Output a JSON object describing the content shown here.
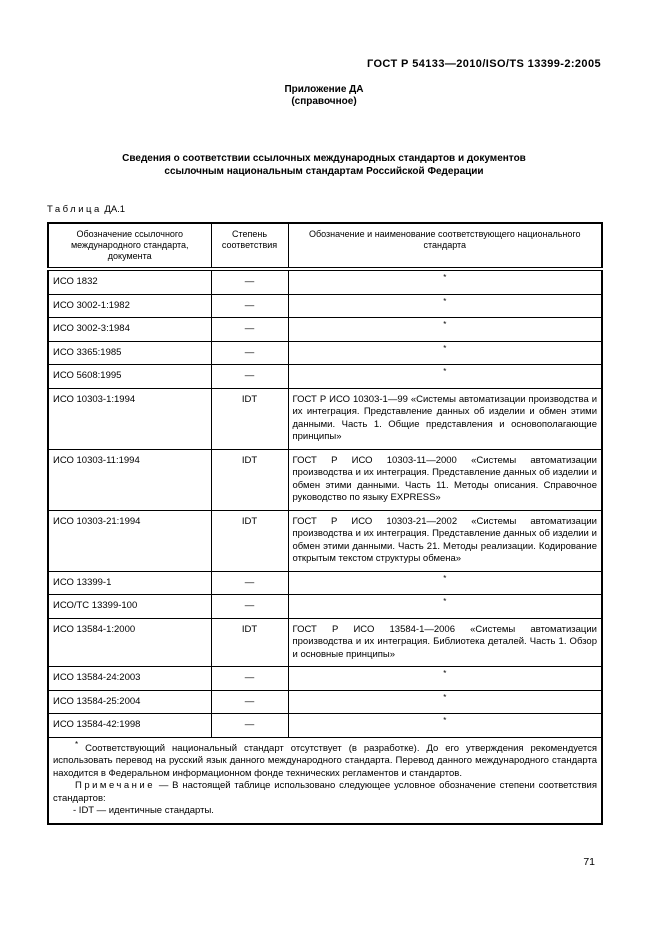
{
  "colors": {
    "ink": "#000000",
    "paper": "#ffffff"
  },
  "page": {
    "header": "ГОСТ Р 54133—2010/ISO/TS 13399-2:2005",
    "annex_label": "Приложение ДА",
    "annex_type": "(справочное)",
    "title_line1": "Сведения о соответствии ссылочных международных стандартов и документов",
    "title_line2": "ссылочным национальным стандартам Российской Федерации",
    "table_caption_word": "Таблица",
    "table_caption_number": "ДА.1",
    "page_number": "71"
  },
  "table": {
    "headers": [
      "Обозначение ссылочного международного стандарта, документа",
      "Степень соответствия",
      "Обозначение и наименование соответствующего национального стандарта"
    ],
    "rows": [
      {
        "standard": "ИСО 1832",
        "degree": "—",
        "national": "*"
      },
      {
        "standard": "ИСО 3002-1:1982",
        "degree": "—",
        "national": "*"
      },
      {
        "standard": "ИСО 3002-3:1984",
        "degree": "—",
        "national": "*"
      },
      {
        "standard": "ИСО 3365:1985",
        "degree": "—",
        "national": "*"
      },
      {
        "standard": "ИСО 5608:1995",
        "degree": "—",
        "national": "*"
      },
      {
        "standard": "ИСО 10303-1:1994",
        "degree": "IDT",
        "national": "ГОСТ Р ИСО 10303-1—99 «Системы автоматизации производства и их интеграция. Представление данных об изделии и обмен этими данными. Часть 1. Общие представления и основополагающие принципы»"
      },
      {
        "standard": "ИСО 10303-11:1994",
        "degree": "IDT",
        "national": "ГОСТ Р ИСО 10303-11—2000 «Системы автоматизации производства и их интеграция. Представление данных об изделии и обмен этими данными. Часть 11. Методы описания. Справочное руководство по языку EXPRESS»"
      },
      {
        "standard": "ИСО 10303-21:1994",
        "degree": "IDT",
        "national": "ГОСТ Р ИСО 10303-21—2002 «Системы автоматизации производства и их интеграция. Представление данных об изделии и обмен этими данными. Часть 21. Методы реализации. Кодирование открытым текстом структуры обмена»"
      },
      {
        "standard": "ИСО 13399-1",
        "degree": "—",
        "national": "*"
      },
      {
        "standard": "ИСО/ТС 13399-100",
        "degree": "—",
        "national": "*"
      },
      {
        "standard": "ИСО 13584-1:2000",
        "degree": "IDT",
        "national": "ГОСТ Р ИСО 13584-1—2006 «Системы автоматизации производства и их интеграция. Библиотека деталей. Часть 1. Обзор и основные принципы»"
      },
      {
        "standard": "ИСО 13584-24:2003",
        "degree": "—",
        "national": "*"
      },
      {
        "standard": "ИСО 13584-25:2004",
        "degree": "—",
        "national": "*"
      },
      {
        "standard": "ИСО 13584-42:1998",
        "degree": "—",
        "national": "*"
      }
    ],
    "footnote": {
      "ref_mark": "*",
      "text": " Соответствующий национальный стандарт отсутствует (в разработке). До его утверждения рекомендуется использовать перевод на русский язык данного международного стандарта. Перевод данного международного стандарта находится в Федеральном информационном фонде технических регламентов и стандартов.",
      "note_label": "Примечание",
      "note_text": " — В настоящей таблице использовано следующее условное обозначение степени соответствия стандартов:",
      "note_item": "- IDT — идентичные стандарты."
    }
  }
}
